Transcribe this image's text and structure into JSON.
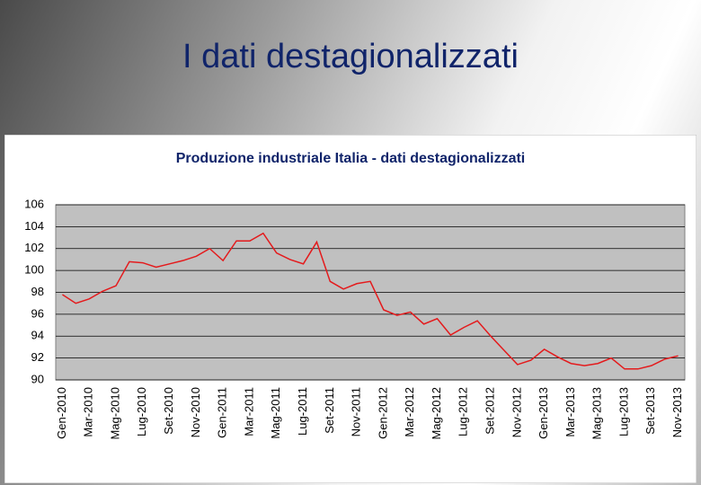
{
  "slide_title": "I dati destagionalizzati",
  "chart_data": {
    "type": "line",
    "title": "Produzione industriale Italia - dati destagionalizzati",
    "categories": [
      "Gen-2010",
      null,
      "Mar-2010",
      null,
      "Mag-2010",
      null,
      "Lug-2010",
      null,
      "Set-2010",
      null,
      "Nov-2010",
      null,
      "Gen-2011",
      null,
      "Mar-2011",
      null,
      "Mag-2011",
      null,
      "Lug-2011",
      null,
      "Set-2011",
      null,
      "Nov-2011",
      null,
      "Gen-2012",
      null,
      "Mar-2012",
      null,
      "Mag-2012",
      null,
      "Lug-2012",
      null,
      "Set-2012",
      null,
      "Nov-2012",
      null,
      "Gen-2013",
      null,
      "Mar-2013",
      null,
      "Mag-2013",
      null,
      "Lug-2013",
      null,
      "Set-2013",
      null,
      "Nov-2013"
    ],
    "values": [
      97.8,
      97.0,
      97.4,
      98.1,
      98.6,
      100.8,
      100.7,
      100.3,
      100.6,
      100.9,
      101.3,
      102.0,
      100.9,
      102.7,
      102.7,
      103.4,
      101.6,
      101.0,
      100.6,
      102.6,
      99.0,
      98.3,
      98.8,
      99.0,
      96.4,
      95.9,
      96.2,
      95.1,
      95.6,
      94.1,
      94.8,
      95.4,
      94.0,
      92.7,
      91.4,
      91.8,
      92.8,
      92.1,
      91.5,
      91.3,
      91.5,
      92.0,
      91.0,
      91.0,
      91.3,
      91.9,
      92.2
    ],
    "color": "#e41a1c",
    "ylim": [
      90,
      106
    ],
    "yticks": [
      90,
      92,
      94,
      96,
      98,
      100,
      102,
      104,
      106
    ],
    "grid": true
  }
}
